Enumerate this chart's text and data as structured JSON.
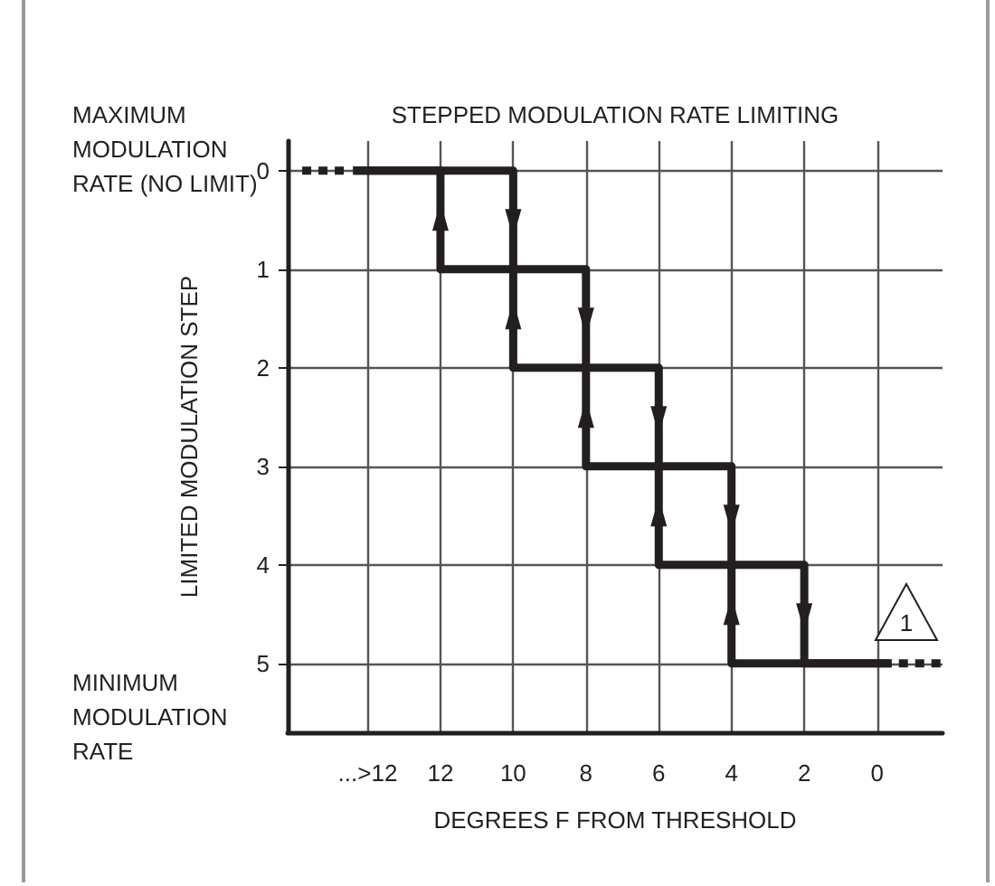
{
  "chart_data": {
    "type": "step",
    "title": "STEPPED MODULATION RATE LIMITING",
    "xlabel": "DEGREES F FROM THRESHOLD",
    "ylabel": "LIMITED MODULATION STEP",
    "annotations": [
      "MAXIMUM\nMODULATION\nRATE (NO LIMIT)",
      "MINIMUM\nMODULATION\nRATE",
      "1"
    ],
    "xlim": [
      16.2,
      -1.8
    ],
    "xticks": [
      {
        "value": 14,
        "label": "...>12"
      },
      12,
      10,
      8,
      6,
      4,
      2,
      0
    ],
    "ylim": [
      5.7,
      -0.3
    ],
    "yticks": [
      0,
      1,
      2,
      3,
      4,
      5
    ],
    "grid": true,
    "marker": "none",
    "series": [
      {
        "color": "#231f20",
        "line_style": "solid",
        "x": [
          14.4,
          10,
          8,
          6,
          4,
          2,
          -0.4
        ],
        "values": [
          0,
          1,
          2,
          3,
          4,
          5,
          5
        ]
      },
      {
        "color": "#231f20",
        "line_style": "solid",
        "x": [
          -0.4,
          4,
          6,
          8,
          10,
          12,
          14.4
        ],
        "values": [
          5,
          4,
          3,
          2,
          1,
          0,
          0
        ]
      },
      {
        "type": "line",
        "color": "#231f20",
        "line_style": "dotted",
        "x": [
          15.8,
          14.6
        ],
        "values": [
          0,
          0
        ]
      },
      {
        "type": "line",
        "color": "#231f20",
        "line_style": "dotted",
        "x": [
          -0.6,
          -1.8
        ],
        "values": [
          5,
          5
        ]
      }
    ]
  }
}
